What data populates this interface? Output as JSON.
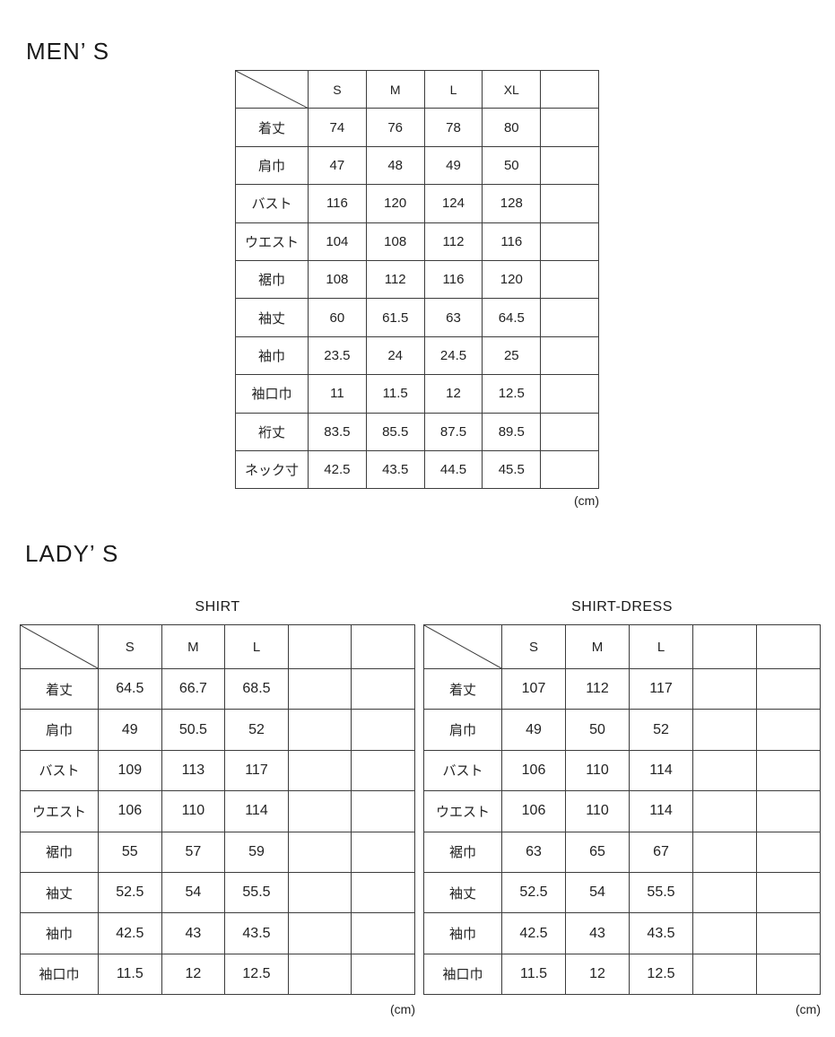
{
  "colors": {
    "background": "#ffffff",
    "border": "#3c3c3c",
    "text": "#222222"
  },
  "mens": {
    "section_title": "MEN’ S",
    "table": {
      "columns": [
        "S",
        "M",
        "L",
        "XL",
        ""
      ],
      "rows": [
        [
          "着丈",
          "74",
          "76",
          "78",
          "80",
          ""
        ],
        [
          "肩巾",
          "47",
          "48",
          "49",
          "50",
          ""
        ],
        [
          "バスト",
          "116",
          "120",
          "124",
          "128",
          ""
        ],
        [
          "ウエスト",
          "104",
          "108",
          "112",
          "116",
          ""
        ],
        [
          "裾巾",
          "108",
          "112",
          "116",
          "120",
          ""
        ],
        [
          "袖丈",
          "60",
          "61.5",
          "63",
          "64.5",
          ""
        ],
        [
          "袖巾",
          "23.5",
          "24",
          "24.5",
          "25",
          ""
        ],
        [
          "袖口巾",
          "11",
          "11.5",
          "12",
          "12.5",
          ""
        ],
        [
          "裄丈",
          "83.5",
          "85.5",
          "87.5",
          "89.5",
          ""
        ],
        [
          "ネック寸",
          "42.5",
          "43.5",
          "44.5",
          "45.5",
          ""
        ]
      ],
      "unit": "(cm)"
    }
  },
  "ladys": {
    "section_title": "LADY’ S",
    "shirt": {
      "table_title": "SHIRT",
      "columns": [
        "S",
        "M",
        "L",
        "",
        ""
      ],
      "rows": [
        [
          "着丈",
          "64.5",
          "66.7",
          "68.5",
          "",
          ""
        ],
        [
          "肩巾",
          "49",
          "50.5",
          "52",
          "",
          ""
        ],
        [
          "バスト",
          "109",
          "113",
          "117",
          "",
          ""
        ],
        [
          "ウエスト",
          "106",
          "110",
          "114",
          "",
          ""
        ],
        [
          "裾巾",
          "55",
          "57",
          "59",
          "",
          ""
        ],
        [
          "袖丈",
          "52.5",
          "54",
          "55.5",
          "",
          ""
        ],
        [
          "袖巾",
          "42.5",
          "43",
          "43.5",
          "",
          ""
        ],
        [
          "袖口巾",
          "11.5",
          "12",
          "12.5",
          "",
          ""
        ]
      ],
      "unit": "(cm)"
    },
    "shirt_dress": {
      "table_title": "SHIRT-DRESS",
      "columns": [
        "S",
        "M",
        "L",
        "",
        ""
      ],
      "rows": [
        [
          "着丈",
          "107",
          "112",
          "117",
          "",
          ""
        ],
        [
          "肩巾",
          "49",
          "50",
          "52",
          "",
          ""
        ],
        [
          "バスト",
          "106",
          "110",
          "114",
          "",
          ""
        ],
        [
          "ウエスト",
          "106",
          "110",
          "114",
          "",
          ""
        ],
        [
          "裾巾",
          "63",
          "65",
          "67",
          "",
          ""
        ],
        [
          "袖丈",
          "52.5",
          "54",
          "55.5",
          "",
          ""
        ],
        [
          "袖巾",
          "42.5",
          "43",
          "43.5",
          "",
          ""
        ],
        [
          "袖口巾",
          "11.5",
          "12",
          "12.5",
          "",
          ""
        ]
      ],
      "unit": "(cm)"
    }
  }
}
